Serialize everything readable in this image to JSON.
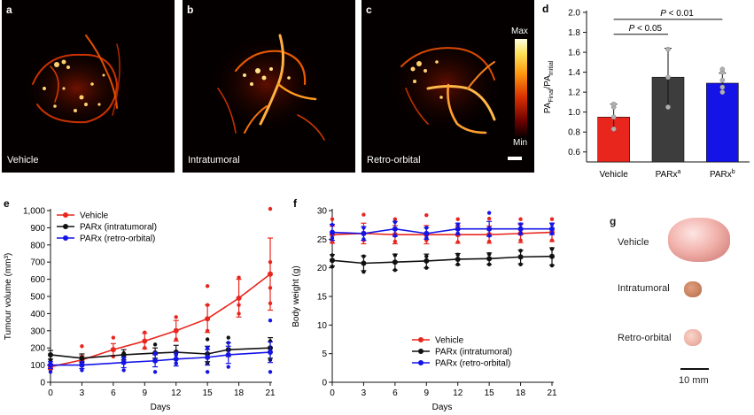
{
  "panels": {
    "a": {
      "letter": "a",
      "caption": "Vehicle"
    },
    "b": {
      "letter": "b",
      "caption": "Intratumoral"
    },
    "c": {
      "letter": "c",
      "caption": "Retro-orbital"
    },
    "colorbar": {
      "max_label": "Max",
      "min_label": "Min"
    },
    "g": {
      "letter": "g",
      "labels": [
        "Vehicle",
        "Intratumoral",
        "Retro-orbital"
      ],
      "scale_label": "10 mm"
    }
  },
  "chart_data": [
    {
      "id": "d",
      "letter": "d",
      "type": "bar",
      "categories": [
        "Vehicle",
        "PARx",
        "PARx"
      ],
      "category_superscripts": [
        "",
        "a",
        "b"
      ],
      "values": [
        0.95,
        1.35,
        1.29
      ],
      "errors": [
        0.13,
        0.29,
        0.1
      ],
      "colors": [
        "#e8261e",
        "#3d3d3d",
        "#1414e6"
      ],
      "points": [
        [
          0.83,
          0.95,
          1.05,
          1.08
        ],
        [
          1.05,
          1.35,
          1.63
        ],
        [
          1.2,
          1.25,
          1.32,
          1.4,
          1.43
        ]
      ],
      "ylabel_main": "PA",
      "ylabel_sub1": "Final",
      "ylabel_sep": "/PA",
      "ylabel_sub2": "Initial",
      "ylim": [
        0.5,
        2.0
      ],
      "yticks": [
        0.6,
        0.8,
        1.0,
        1.2,
        1.4,
        1.6,
        1.8,
        2.0
      ],
      "ytick_labels": [
        "0.6",
        "0.8",
        "1.0",
        "1.2",
        "1.4",
        "1.6",
        "1.8",
        "2.0"
      ],
      "annotations": [
        {
          "text_p": "P",
          "text_rest": " < 0.05",
          "from": 0,
          "to": 1,
          "level": 1.78
        },
        {
          "text_p": "P",
          "text_rest": " < 0.01",
          "from": 0,
          "to": 2,
          "level": 1.93
        }
      ]
    },
    {
      "id": "e",
      "letter": "e",
      "type": "line",
      "xlabel": "Days",
      "ylabel": "Tumour volume (mm³)",
      "xlim": [
        0,
        21
      ],
      "ylim": [
        0,
        1000
      ],
      "xticks": [
        0,
        3,
        6,
        9,
        12,
        15,
        18,
        21
      ],
      "xtick_labels": [
        "0",
        "3",
        "6",
        "9",
        "12",
        "15",
        "18",
        "21"
      ],
      "yticks": [
        0,
        100,
        200,
        300,
        400,
        500,
        600,
        700,
        800,
        900,
        1000
      ],
      "ytick_labels": [
        "0",
        "100",
        "200",
        "300",
        "400",
        "500",
        "600",
        "700",
        "800",
        "900",
        "1,000"
      ],
      "legend_position": "top-left",
      "series": [
        {
          "name": "Vehicle",
          "color": "#e8261e",
          "x": [
            0,
            3,
            6,
            9,
            12,
            15,
            18,
            21
          ],
          "y": [
            90,
            130,
            190,
            240,
            300,
            370,
            490,
            630
          ],
          "err": [
            15,
            25,
            35,
            45,
            60,
            80,
            110,
            210
          ],
          "points": [
            [
              0,
              70
            ],
            [
              0,
              100
            ],
            [
              3,
              210
            ],
            [
              3,
              100
            ],
            [
              6,
              260
            ],
            [
              6,
              150
            ],
            [
              9,
              290
            ],
            [
              9,
              200
            ],
            [
              12,
              380
            ],
            [
              12,
              250
            ],
            [
              15,
              560
            ],
            [
              15,
              300
            ],
            [
              15,
              450
            ],
            [
              18,
              610
            ],
            [
              18,
              450
            ],
            [
              18,
              400
            ],
            [
              21,
              1010
            ],
            [
              21,
              700
            ],
            [
              21,
              550
            ],
            [
              21,
              460
            ]
          ]
        },
        {
          "name": "PARx (intratumoral)",
          "color": "#111111",
          "x": [
            0,
            3,
            7,
            10,
            12,
            15,
            17,
            21
          ],
          "y": [
            160,
            140,
            160,
            170,
            175,
            165,
            190,
            200
          ],
          "err": [
            25,
            25,
            30,
            30,
            40,
            45,
            40,
            60
          ],
          "points": [
            [
              0,
              130
            ],
            [
              0,
              160
            ],
            [
              3,
              110
            ],
            [
              3,
              140
            ],
            [
              7,
              150
            ],
            [
              7,
              170
            ],
            [
              10,
              130
            ],
            [
              10,
              220
            ],
            [
              12,
              110
            ],
            [
              12,
              160
            ],
            [
              15,
              110
            ],
            [
              15,
              250
            ],
            [
              17,
              160
            ],
            [
              17,
              260
            ],
            [
              21,
              130
            ],
            [
              21,
              240
            ]
          ]
        },
        {
          "name": "PARx (retro-orbital)",
          "color": "#1414e6",
          "x": [
            0,
            3,
            7,
            10,
            12,
            15,
            17,
            21
          ],
          "y": [
            100,
            100,
            115,
            125,
            135,
            145,
            160,
            175
          ],
          "err": [
            20,
            20,
            30,
            35,
            40,
            45,
            50,
            60
          ],
          "points": [
            [
              0,
              60
            ],
            [
              0,
              110
            ],
            [
              3,
              70
            ],
            [
              3,
              110
            ],
            [
              7,
              70
            ],
            [
              7,
              140
            ],
            [
              10,
              60
            ],
            [
              10,
              170
            ],
            [
              12,
              110
            ],
            [
              12,
              160
            ],
            [
              15,
              60
            ],
            [
              15,
              200
            ],
            [
              17,
              90
            ],
            [
              17,
              230
            ],
            [
              21,
              60
            ],
            [
              21,
              360
            ]
          ]
        }
      ]
    },
    {
      "id": "f",
      "letter": "f",
      "type": "line",
      "xlabel": "Days",
      "ylabel": "Body weight (g)",
      "xlim": [
        0,
        21
      ],
      "ylim": [
        0,
        30
      ],
      "xticks": [
        0,
        3,
        6,
        9,
        12,
        15,
        18,
        21
      ],
      "xtick_labels": [
        "0",
        "3",
        "6",
        "9",
        "12",
        "15",
        "18",
        "21"
      ],
      "yticks": [
        0,
        5,
        10,
        15,
        20,
        25,
        30
      ],
      "ytick_labels": [
        "0",
        "5",
        "10",
        "15",
        "20",
        "25",
        "30"
      ],
      "legend_position": "bottom-right",
      "series": [
        {
          "name": "Vehicle",
          "color": "#e8261e",
          "x": [
            0,
            3,
            6,
            9,
            12,
            15,
            18,
            21
          ],
          "y": [
            25.8,
            26.0,
            25.8,
            25.8,
            25.8,
            25.8,
            26.0,
            26.2
          ],
          "err": [
            1.5,
            1.8,
            1.6,
            1.6,
            1.5,
            1.5,
            1.6,
            1.6
          ],
          "points": [
            [
              0,
              28.5
            ],
            [
              0,
              24.5
            ],
            [
              3,
              29.3
            ],
            [
              3,
              24.8
            ],
            [
              6,
              28.5
            ],
            [
              6,
              24.6
            ],
            [
              9,
              29.2
            ],
            [
              9,
              24.8
            ],
            [
              12,
              28.5
            ],
            [
              12,
              24.5
            ],
            [
              15,
              28.6
            ],
            [
              15,
              24.6
            ],
            [
              18,
              28.5
            ],
            [
              18,
              24.8
            ],
            [
              21,
              28.5
            ],
            [
              21,
              24.8
            ]
          ]
        },
        {
          "name": "PARx (intratumoral)",
          "color": "#111111",
          "x": [
            0,
            3,
            6,
            9,
            12,
            15,
            18,
            21
          ],
          "y": [
            21.3,
            20.8,
            21.0,
            21.2,
            21.5,
            21.6,
            21.9,
            22.0
          ],
          "err": [
            1.0,
            1.3,
            1.4,
            1.2,
            1.0,
            1.0,
            1.2,
            1.5
          ],
          "points": [
            [
              0,
              20.2
            ],
            [
              0,
              22.2
            ],
            [
              3,
              19.3
            ],
            [
              3,
              22.0
            ],
            [
              6,
              19.6
            ],
            [
              6,
              22.2
            ],
            [
              9,
              20.0
            ],
            [
              9,
              22.0
            ],
            [
              12,
              20.6
            ],
            [
              12,
              22.3
            ],
            [
              15,
              20.6
            ],
            [
              15,
              22.4
            ],
            [
              18,
              20.6
            ],
            [
              18,
              23.0
            ],
            [
              21,
              20.4
            ],
            [
              21,
              23.3
            ]
          ]
        },
        {
          "name": "PARx (retro-orbital)",
          "color": "#1414e6",
          "x": [
            0,
            3,
            6,
            9,
            12,
            15,
            18,
            21
          ],
          "y": [
            26.2,
            26.0,
            26.8,
            26.0,
            26.8,
            26.8,
            26.8,
            26.8
          ],
          "err": [
            1.4,
            1.2,
            1.3,
            1.0,
            1.0,
            1.3,
            1.0,
            1.0
          ],
          "points": [
            [
              0,
              27.5
            ],
            [
              0,
              25.2
            ],
            [
              3,
              27.0
            ],
            [
              3,
              25.0
            ],
            [
              6,
              28.0
            ],
            [
              6,
              25.6
            ],
            [
              9,
              27.0
            ],
            [
              9,
              25.2
            ],
            [
              12,
              27.6
            ],
            [
              12,
              26.0
            ],
            [
              15,
              29.6
            ],
            [
              15,
              25.6
            ],
            [
              18,
              27.6
            ],
            [
              18,
              26.0
            ],
            [
              21,
              27.6
            ],
            [
              21,
              26.0
            ]
          ]
        }
      ]
    }
  ]
}
